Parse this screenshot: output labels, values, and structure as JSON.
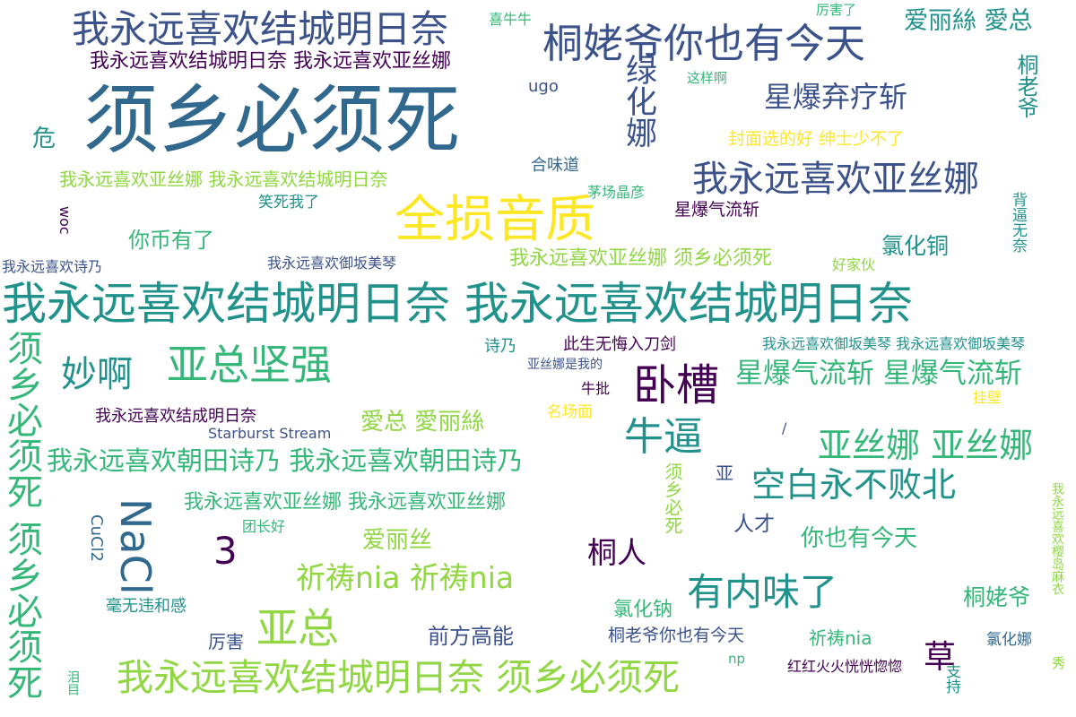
{
  "palette": {
    "background": "#ffffff",
    "dark_purple": "#440154",
    "navy": "#3b528b",
    "slate_blue": "#31688e",
    "teal": "#21918c",
    "green": "#35b779",
    "lime": "#90d743",
    "yellow": "#fde725"
  },
  "words": [
    "须乡必须死",
    "我永远喜欢结城明日奈",
    "我永远喜欢结城明日奈 我永远喜欢亚丝娜",
    "桐姥爷你也有今天",
    "绿化娜",
    "星爆弃疗斩",
    "爱丽絲 愛总",
    "喜牛牛",
    "厉害了",
    "桐老爷",
    "这样啊",
    "ugo",
    "危",
    "封面选的好 绅士少不了",
    "合味道",
    "我永远喜欢亚丝娜 我永远喜欢结城明日奈",
    "我永远喜欢亚丝娜",
    "茅场晶彦",
    "笑死我了",
    "全损音质",
    "星爆气流斩",
    "背逼无奈",
    "woc",
    "你币有了",
    "氯化铜",
    "我永远喜欢亚丝娜 须乡必须死",
    "好家伙",
    "我永远喜欢诗乃",
    "我永远喜欢御坂美琴",
    "我永远喜欢结城明日奈 我永远喜欢结城明日奈",
    "诗乃",
    "此生无悔入刀剑",
    "我永远喜欢御坂美琴 我永远喜欢御坂美琴",
    "亚丝娜是我的",
    "妙啊",
    "亚总坚强",
    "卧槽",
    "星爆气流斩 星爆气流斩",
    "须乡必须死 须乡必须死",
    "牛批",
    "挂壁",
    "我永远喜欢结成明日奈",
    "名场面",
    "愛总 愛丽絲",
    "牛逼",
    "/",
    "Starburst Stream",
    "亚丝娜 亚丝娜",
    "我永远喜欢朝田诗乃 我永远喜欢朝田诗乃",
    "须乡必死",
    "亚",
    "空白永不败北",
    "我永远喜欢亚丝娜 我永远喜欢亚丝娜",
    "NaCl",
    "CuCl2",
    "团长好",
    "人才",
    "我永远喜欢樱岛麻衣",
    "3",
    "爱丽丝",
    "你也有今天",
    "桐人",
    "祈祷nia 祈祷nia",
    "毫无违和感",
    "有内味了",
    "桐姥爷",
    "氯化钠",
    "亚总",
    "厉害",
    "前方高能",
    "桐老爷你也有今天",
    "祈祷nia",
    "氯化娜",
    "草",
    "我永远喜欢结城明日奈 须乡必须死",
    "np",
    "红红火火恍恍惚惚",
    "支持",
    "泪目",
    "秀"
  ]
}
